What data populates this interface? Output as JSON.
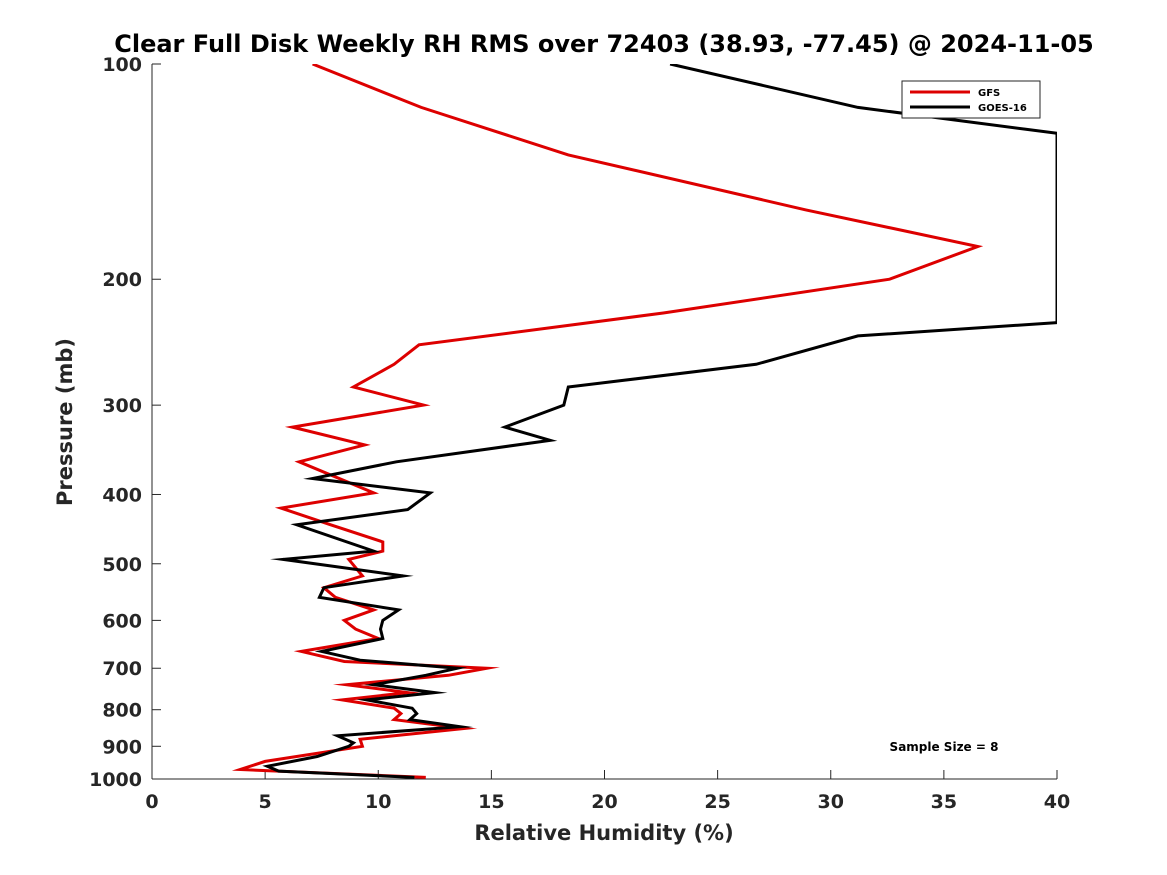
{
  "chart_data": {
    "type": "line",
    "title": "Clear Full Disk Weekly RH RMS over 72403 (38.93, -77.45) @ 2024-11-05",
    "xlabel": "Relative Humidity (%)",
    "ylabel": "Pressure (mb)",
    "xlim": [
      0,
      40
    ],
    "ylim": [
      1000,
      100
    ],
    "y_scale": "log",
    "y_reversed": true,
    "x_ticks": [
      "0",
      "5",
      "10",
      "15",
      "20",
      "25",
      "30",
      "35",
      "40"
    ],
    "y_ticks": [
      "100",
      "200",
      "300",
      "400",
      "500",
      "600",
      "700",
      "800",
      "900",
      "1000"
    ],
    "grid": false,
    "legend_position": "top-right",
    "annotation": "Sample Size = 8",
    "series": [
      {
        "name": "GFS",
        "color": "#dd0000",
        "points": [
          [
            7.1,
            100
          ],
          [
            11.9,
            115
          ],
          [
            18.4,
            134
          ],
          [
            28.9,
            160
          ],
          [
            36.5,
            180
          ],
          [
            32.6,
            200
          ],
          [
            22.6,
            223
          ],
          [
            11.8,
            247
          ],
          [
            10.7,
            263
          ],
          [
            8.9,
            283
          ],
          [
            12.0,
            300
          ],
          [
            6.2,
            322
          ],
          [
            9.4,
            341
          ],
          [
            6.5,
            360
          ],
          [
            9.8,
            398
          ],
          [
            5.7,
            418
          ],
          [
            7.9,
            441
          ],
          [
            10.2,
            466
          ],
          [
            10.2,
            480
          ],
          [
            8.7,
            493
          ],
          [
            9.3,
            520
          ],
          [
            7.6,
            540
          ],
          [
            8.1,
            557
          ],
          [
            9.8,
            580
          ],
          [
            8.5,
            600
          ],
          [
            9.0,
            617
          ],
          [
            10.0,
            636
          ],
          [
            6.6,
            663
          ],
          [
            8.5,
            685
          ],
          [
            14.8,
            700
          ],
          [
            13.1,
            716
          ],
          [
            8.6,
            738
          ],
          [
            11.3,
            757
          ],
          [
            8.4,
            775
          ],
          [
            10.7,
            796
          ],
          [
            11.0,
            810
          ],
          [
            10.7,
            826
          ],
          [
            13.8,
            850
          ],
          [
            9.2,
            880
          ],
          [
            9.3,
            900
          ],
          [
            5.0,
            945
          ],
          [
            3.9,
            970
          ],
          [
            12.1,
            995
          ]
        ]
      },
      {
        "name": "GOES-16",
        "color": "#000000",
        "points": [
          [
            22.9,
            100
          ],
          [
            31.2,
            115
          ],
          [
            40.0,
            125
          ],
          [
            40.0,
            230
          ],
          [
            31.2,
            240
          ],
          [
            26.7,
            263
          ],
          [
            18.4,
            283
          ],
          [
            18.2,
            300
          ],
          [
            15.6,
            322
          ],
          [
            17.6,
            336
          ],
          [
            10.8,
            360
          ],
          [
            7.1,
            380
          ],
          [
            12.3,
            398
          ],
          [
            11.3,
            420
          ],
          [
            6.4,
            441
          ],
          [
            9.8,
            480
          ],
          [
            5.8,
            493
          ],
          [
            11.1,
            520
          ],
          [
            7.6,
            540
          ],
          [
            7.4,
            557
          ],
          [
            10.9,
            580
          ],
          [
            10.2,
            600
          ],
          [
            10.1,
            617
          ],
          [
            10.2,
            636
          ],
          [
            7.5,
            663
          ],
          [
            9.2,
            682
          ],
          [
            13.5,
            700
          ],
          [
            12.1,
            716
          ],
          [
            9.8,
            738
          ],
          [
            12.5,
            757
          ],
          [
            9.5,
            775
          ],
          [
            11.5,
            796
          ],
          [
            11.7,
            810
          ],
          [
            11.4,
            826
          ],
          [
            13.6,
            845
          ],
          [
            8.2,
            870
          ],
          [
            8.9,
            890
          ],
          [
            8.7,
            900
          ],
          [
            7.3,
            930
          ],
          [
            5.1,
            960
          ],
          [
            5.6,
            975
          ],
          [
            11.6,
            995
          ]
        ]
      }
    ]
  }
}
